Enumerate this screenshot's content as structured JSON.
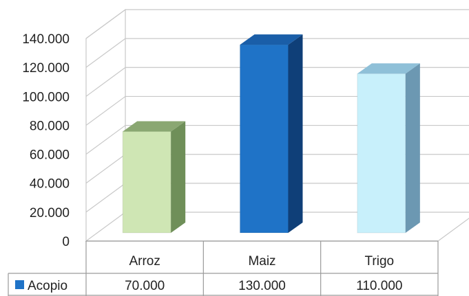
{
  "chart_data": {
    "type": "bar",
    "categories": [
      "Arroz",
      "Maiz",
      "Trigo"
    ],
    "series": [
      {
        "name": "Acopio",
        "values": [
          70000,
          130000,
          110000
        ]
      }
    ],
    "bar_colors": [
      {
        "front": "#cfe6b4",
        "side": "#6f8f59",
        "top": "#8aa772"
      },
      {
        "front": "#1f73c7",
        "side": "#0f3f78",
        "top": "#1a5ea8"
      },
      {
        "front": "#c8f0fb",
        "side": "#6c98b2",
        "top": "#8fc0d8"
      }
    ],
    "legend_color": "#1f73c7",
    "ylim": [
      0,
      140000
    ],
    "y_ticks": [
      "0",
      "20.000",
      "40.000",
      "60.000",
      "80.000",
      "100.000",
      "120.000",
      "140.000"
    ],
    "data_table": {
      "row_label": "Acopio",
      "values": [
        "70.000",
        "130.000",
        "110.000"
      ]
    },
    "grid": true,
    "legend": "data-table"
  }
}
